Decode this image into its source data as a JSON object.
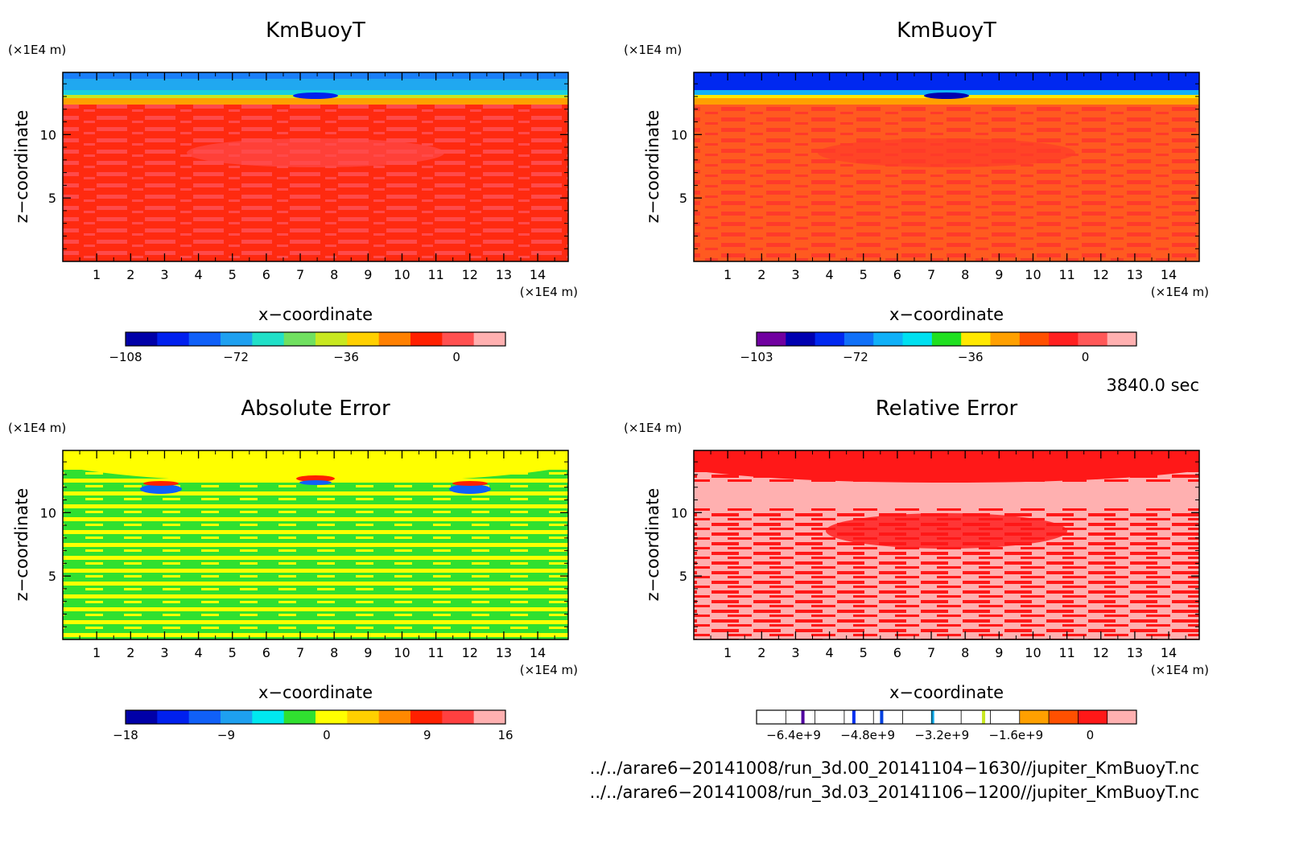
{
  "chart_data": [
    {
      "type": "heatmap",
      "title": "KmBuoyT",
      "xlabel": "x−coordinate",
      "ylabel": "z−coordinate",
      "x_unit": "(×1E4 m)",
      "y_unit": "(×1E4 m)",
      "xlim": [
        0,
        14.9
      ],
      "ylim": [
        0,
        14.9
      ],
      "xticks": [
        "1",
        "2",
        "3",
        "4",
        "5",
        "6",
        "7",
        "8",
        "9",
        "10",
        "11",
        "12",
        "13",
        "14"
      ],
      "yticks": [
        "5",
        "10"
      ],
      "colorbar": {
        "colors": [
          "#0000a8",
          "#0020ee",
          "#1060f8",
          "#1ea0f0",
          "#20e0c8",
          "#70e060",
          "#c8e820",
          "#ffd000",
          "#ff8000",
          "#ff2000",
          "#ff5050",
          "#ffb0b0"
        ],
        "labels": [
          "−108",
          "−72",
          "−36",
          "0"
        ],
        "label_values": [
          -108,
          -72,
          -36,
          0
        ],
        "range": [
          -108,
          16
        ]
      }
    },
    {
      "type": "heatmap",
      "title": "KmBuoyT",
      "xlabel": "x−coordinate",
      "ylabel": "z−coordinate",
      "x_unit": "(×1E4 m)",
      "y_unit": "(×1E4 m)",
      "xlim": [
        0,
        14.9
      ],
      "ylim": [
        0,
        14.9
      ],
      "xticks": [
        "1",
        "2",
        "3",
        "4",
        "5",
        "6",
        "7",
        "8",
        "9",
        "10",
        "11",
        "12",
        "13",
        "14"
      ],
      "yticks": [
        "5",
        "10"
      ],
      "colorbar": {
        "colors": [
          "#7000a0",
          "#0000b0",
          "#0028f0",
          "#1070f8",
          "#10b0f8",
          "#00e0f0",
          "#20e020",
          "#ffe800",
          "#ffa000",
          "#ff5000",
          "#ff2020",
          "#ff5858",
          "#ffb0b0"
        ],
        "labels": [
          "−103",
          "−72",
          "−36",
          "0"
        ],
        "label_values": [
          -103,
          -72,
          -36,
          0
        ],
        "range": [
          -103,
          16
        ]
      }
    },
    {
      "type": "heatmap",
      "title": "Absolute Error",
      "xlabel": "x−coordinate",
      "ylabel": "z−coordinate",
      "x_unit": "(×1E4 m)",
      "y_unit": "(×1E4 m)",
      "xlim": [
        0,
        14.9
      ],
      "ylim": [
        0,
        14.9
      ],
      "xticks": [
        "1",
        "2",
        "3",
        "4",
        "5",
        "6",
        "7",
        "8",
        "9",
        "10",
        "11",
        "12",
        "13",
        "14"
      ],
      "yticks": [
        "5",
        "10"
      ],
      "colorbar": {
        "colors": [
          "#0000a8",
          "#0020ee",
          "#1060f8",
          "#1ea0f0",
          "#00e8f0",
          "#30e030",
          "#ffff00",
          "#ffd000",
          "#ff8800",
          "#ff2000",
          "#ff4040",
          "#ffb0b0"
        ],
        "labels": [
          "−18",
          "−9",
          "0",
          "9",
          "16"
        ],
        "label_values": [
          -18,
          -9,
          0,
          9,
          16
        ],
        "range": [
          -18,
          16
        ]
      }
    },
    {
      "type": "heatmap",
      "title": "Relative Error",
      "xlabel": "x−coordinate",
      "ylabel": "z−coordinate",
      "x_unit": "(×1E4 m)",
      "y_unit": "(×1E4 m)",
      "xlim": [
        0,
        14.9
      ],
      "ylim": [
        0,
        14.9
      ],
      "xticks": [
        "1",
        "2",
        "3",
        "4",
        "5",
        "6",
        "7",
        "8",
        "9",
        "10",
        "11",
        "12",
        "13",
        "14"
      ],
      "yticks": [
        "5",
        "10"
      ],
      "colorbar": {
        "colors": [
          "#ffffff",
          "#ffffff",
          "#ffffff",
          "#ffffff",
          "#ffffff",
          "#ffffff",
          "#ffffff",
          "#ffffff",
          "#ffffff",
          "#ffa000",
          "#ff5000",
          "#ff1818",
          "#ffb0b0"
        ],
        "labels": [
          "−6.4e+9",
          "−4.8e+9",
          "−3.2e+9",
          "−1.6e+9",
          "0"
        ],
        "label_values": [
          -6400000000.0,
          -4800000000.0,
          -3200000000.0,
          -1600000000.0,
          0
        ],
        "range": [
          -7200000000.0,
          1000000000.0
        ],
        "marks": [
          {
            "value": -6200000000.0,
            "color": "#5000a0"
          },
          {
            "value": -5100000000.0,
            "color": "#0030f0"
          },
          {
            "value": -4500000000.0,
            "color": "#0040e0"
          },
          {
            "value": -3400000000.0,
            "color": "#10b0f0"
          },
          {
            "value": -2300000000.0,
            "color": "#c8e820"
          }
        ]
      }
    }
  ],
  "time_label": "3840.0 sec",
  "files": [
    "../../arare6−20141008/run_3d.00_20141104−1630//jupiter_KmBuoyT.nc",
    "../../arare6−20141008/run_3d.03_20141106−1200//jupiter_KmBuoyT.nc"
  ]
}
